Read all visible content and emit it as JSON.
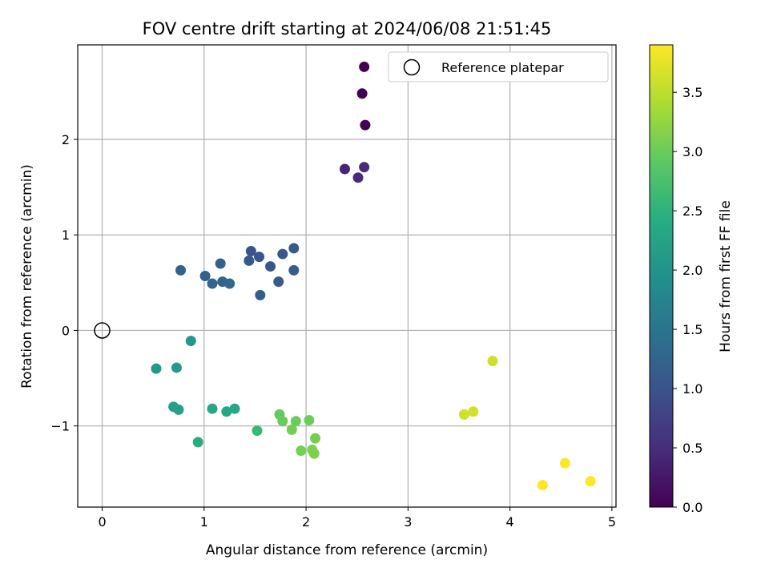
{
  "chart_data": {
    "type": "scatter",
    "title": "FOV centre drift starting at 2024/06/08 21:51:45",
    "xlabel": "Angular distance from reference (arcmin)",
    "ylabel": "Rotation from reference (arcmin)",
    "xlim": [
      -0.24,
      5.04
    ],
    "ylim": [
      -1.85,
      2.99
    ],
    "xticks": [
      0,
      1,
      2,
      3,
      4,
      5
    ],
    "xtick_labels": [
      "0",
      "1",
      "2",
      "3",
      "4",
      "5"
    ],
    "yticks": [
      -1,
      0,
      1,
      2
    ],
    "ytick_labels": [
      "−1",
      "0",
      "1",
      "2"
    ],
    "grid": true,
    "legend": {
      "position": "top-right",
      "entries": [
        "Reference platepar"
      ]
    },
    "colorbar": {
      "label": "Hours from first FF file",
      "range": [
        0.0,
        3.9
      ],
      "ticks": [
        0.0,
        0.5,
        1.0,
        1.5,
        2.0,
        2.5,
        3.0,
        3.5
      ],
      "tick_labels": [
        "0.0",
        "0.5",
        "1.0",
        "1.5",
        "2.0",
        "2.5",
        "3.0",
        "3.5"
      ],
      "colormap": "viridis"
    },
    "reference_point": {
      "x": 0,
      "y": 0
    },
    "series": [
      {
        "x": [
          2.57,
          2.55,
          2.58,
          2.38,
          2.51,
          2.57,
          1.46,
          1.54,
          1.65,
          1.77,
          1.88,
          1.44,
          1.73,
          1.88,
          1.55,
          1.16,
          1.01,
          0.77,
          1.18,
          1.08,
          1.25,
          0.87,
          0.53,
          0.73,
          0.7,
          0.75,
          1.08,
          1.22,
          1.3,
          0.94,
          1.52,
          1.74,
          1.77,
          1.9,
          2.03,
          1.86,
          2.09,
          1.95,
          2.06,
          2.08,
          3.83,
          3.55,
          3.64,
          4.54,
          4.79,
          4.32
        ],
        "y": [
          2.76,
          2.48,
          2.15,
          1.69,
          1.6,
          1.71,
          0.83,
          0.77,
          0.67,
          0.8,
          0.86,
          0.73,
          0.51,
          0.63,
          0.37,
          0.7,
          0.57,
          0.63,
          0.51,
          0.49,
          0.49,
          -0.11,
          -0.4,
          -0.39,
          -0.8,
          -0.83,
          -0.82,
          -0.85,
          -0.82,
          -1.17,
          -1.05,
          -0.88,
          -0.95,
          -0.95,
          -0.94,
          -1.04,
          -1.13,
          -1.26,
          -1.25,
          -1.29,
          -0.32,
          -0.88,
          -0.85,
          -1.39,
          -1.58,
          -1.62
        ],
        "hours": [
          0.0,
          0.0,
          0.0,
          0.4,
          0.45,
          0.45,
          1.0,
          1.02,
          1.04,
          1.06,
          1.08,
          1.1,
          1.12,
          1.14,
          1.16,
          1.18,
          1.2,
          1.22,
          1.24,
          1.26,
          1.28,
          2.05,
          2.1,
          2.12,
          2.2,
          2.22,
          2.3,
          2.32,
          2.34,
          2.4,
          2.6,
          2.95,
          2.98,
          3.0,
          3.02,
          3.04,
          3.06,
          3.08,
          3.1,
          3.12,
          3.6,
          3.62,
          3.64,
          3.9,
          3.9,
          3.9
        ]
      }
    ]
  }
}
